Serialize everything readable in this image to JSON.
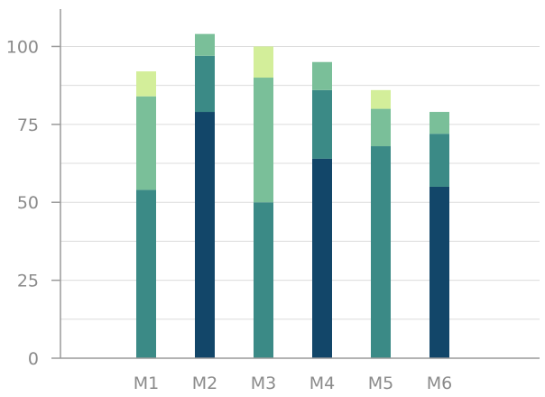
{
  "chart_data": {
    "type": "bar",
    "stacked": true,
    "categories": [
      "M1",
      "M2",
      "M3",
      "M4",
      "M5",
      "M6"
    ],
    "series": [
      {
        "color": "#124669",
        "values": [
          0,
          79,
          0,
          64,
          0,
          55
        ]
      },
      {
        "color": "#3b8a86",
        "values": [
          54,
          18,
          50,
          22,
          68,
          17
        ]
      },
      {
        "color": "#7abf99",
        "values": [
          30,
          7,
          40,
          9,
          12,
          7
        ]
      },
      {
        "color": "#d3ee9a",
        "values": [
          8,
          0,
          10,
          0,
          6,
          0
        ]
      }
    ],
    "yticks": [
      0,
      25,
      50,
      75,
      100
    ],
    "ylim": [
      0,
      112
    ],
    "grid": true,
    "title": "",
    "xlabel": "",
    "ylabel": ""
  }
}
